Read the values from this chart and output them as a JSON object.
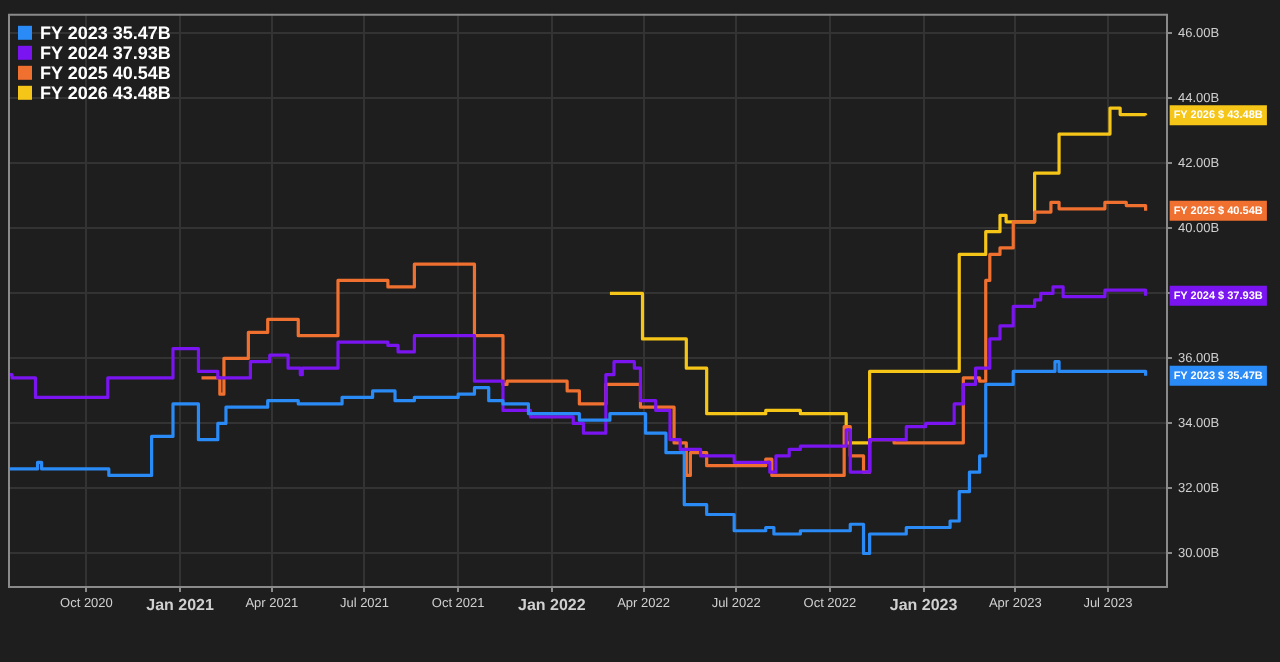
{
  "chart_data": {
    "type": "step",
    "legend": "top left",
    "grid": true,
    "xlim": [
      "2020-07-16",
      "2023-08-27"
    ],
    "xticks": [
      {
        "value": "2020-10-01",
        "label": "Oct 2020"
      },
      {
        "value": "2021-01-01",
        "label": "Jan 2021"
      },
      {
        "value": "2021-04-01",
        "label": "Apr 2021"
      },
      {
        "value": "2021-07-01",
        "label": "Jul 2021"
      },
      {
        "value": "2021-10-01",
        "label": "Oct 2021"
      },
      {
        "value": "2022-01-01",
        "label": "Jan 2022"
      },
      {
        "value": "2022-04-01",
        "label": "Apr 2022"
      },
      {
        "value": "2022-07-01",
        "label": "Jul 2022"
      },
      {
        "value": "2022-10-01",
        "label": "Oct 2022"
      },
      {
        "value": "2023-01-01",
        "label": "Jan 2023"
      },
      {
        "value": "2023-04-01",
        "label": "Apr 2023"
      },
      {
        "value": "2023-07-01",
        "label": "Jul 2023"
      }
    ],
    "ylim": [
      29.0,
      46.6
    ],
    "yticks": [
      {
        "value": 30,
        "label": "30.00B"
      },
      {
        "value": 32,
        "label": "32.00B"
      },
      {
        "value": 34,
        "label": "34.00B"
      },
      {
        "value": 36,
        "label": "36.00B"
      },
      {
        "value": 38,
        "label": null
      },
      {
        "value": 40,
        "label": "40.00B"
      },
      {
        "value": 42,
        "label": "42.00B"
      },
      {
        "value": 44,
        "label": "44.00B"
      },
      {
        "value": 46,
        "label": "46.00B"
      }
    ],
    "series": [
      {
        "name": "FY 2023 35.47B",
        "color": "#2a8af6",
        "x": [
          "2020-07-16",
          "2020-08-14",
          "2020-08-18",
          "2020-10-23",
          "2020-12-04",
          "2020-12-25",
          "2021-01-19",
          "2021-02-07",
          "2021-02-15",
          "2021-03-28",
          "2021-04-27",
          "2021-06-09",
          "2021-07-09",
          "2021-07-31",
          "2021-08-19",
          "2021-10-01",
          "2021-10-17",
          "2021-10-31",
          "2021-11-14",
          "2021-12-09",
          "2022-01-28",
          "2022-02-27",
          "2022-04-03",
          "2022-04-23",
          "2022-05-11",
          "2022-06-02",
          "2022-06-29",
          "2022-07-30",
          "2022-08-07",
          "2022-09-02",
          "2022-10-21",
          "2022-11-03",
          "2022-11-09",
          "2022-12-15",
          "2023-01-27",
          "2023-02-05",
          "2023-02-15",
          "2023-02-25",
          "2023-03-03",
          "2023-03-30",
          "2023-05-10",
          "2023-05-14",
          "2023-08-07"
        ],
        "values": [
          32.6,
          32.8,
          32.6,
          32.4,
          33.6,
          34.6,
          33.5,
          34.0,
          34.5,
          34.7,
          34.6,
          34.8,
          35.0,
          34.7,
          34.8,
          34.9,
          35.1,
          34.7,
          34.6,
          34.3,
          34.1,
          34.3,
          33.7,
          33.1,
          31.5,
          31.2,
          30.7,
          30.8,
          30.6,
          30.7,
          30.9,
          30.0,
          30.6,
          30.8,
          31.0,
          31.9,
          32.5,
          33.0,
          35.2,
          35.6,
          35.9,
          35.6,
          35.47
        ]
      },
      {
        "name": "FY 2024 37.93B",
        "color": "#7a14f0",
        "x": [
          "2020-07-16",
          "2020-07-20",
          "2020-08-12",
          "2020-10-22",
          "2020-12-25",
          "2021-01-19",
          "2021-02-07",
          "2021-03-11",
          "2021-03-30",
          "2021-04-17",
          "2021-04-29",
          "2021-05-01",
          "2021-06-05",
          "2021-07-24",
          "2021-08-03",
          "2021-08-19",
          "2021-10-17",
          "2021-11-14",
          "2021-12-11",
          "2022-01-22",
          "2022-02-01",
          "2022-02-23",
          "2022-03-03",
          "2022-03-23",
          "2022-03-29",
          "2022-04-13",
          "2022-04-27",
          "2022-05-07",
          "2022-05-27",
          "2022-06-29",
          "2022-08-03",
          "2022-08-09",
          "2022-08-22",
          "2022-09-02",
          "2022-10-17",
          "2022-10-21",
          "2022-11-09",
          "2022-12-15",
          "2023-01-03",
          "2023-01-31",
          "2023-02-09",
          "2023-02-21",
          "2023-03-07",
          "2023-03-17",
          "2023-03-30",
          "2023-04-20",
          "2023-04-26",
          "2023-05-08",
          "2023-05-18",
          "2023-06-28",
          "2023-08-07"
        ],
        "values": [
          35.5,
          35.4,
          34.8,
          35.4,
          36.3,
          35.6,
          35.4,
          35.9,
          36.1,
          35.7,
          35.5,
          35.7,
          36.5,
          36.4,
          36.2,
          36.7,
          35.3,
          34.4,
          34.2,
          34.0,
          33.7,
          35.5,
          35.9,
          35.7,
          34.7,
          34.4,
          33.5,
          33.2,
          33.0,
          32.8,
          32.5,
          33.0,
          33.2,
          33.3,
          33.8,
          32.5,
          33.5,
          33.9,
          34.0,
          34.6,
          35.2,
          35.7,
          36.6,
          37.0,
          37.6,
          37.8,
          38.0,
          38.2,
          37.9,
          38.1,
          37.93
        ]
      },
      {
        "name": "FY 2025 40.54B",
        "color": "#f07030",
        "x": [
          "2021-01-22",
          "2021-02-09",
          "2021-02-13",
          "2021-03-09",
          "2021-03-28",
          "2021-04-27",
          "2021-06-05",
          "2021-07-24",
          "2021-08-19",
          "2021-10-17",
          "2021-11-14",
          "2021-11-18",
          "2022-01-16",
          "2022-01-28",
          "2022-02-23",
          "2022-03-29",
          "2022-05-01",
          "2022-05-13",
          "2022-05-17",
          "2022-06-02",
          "2022-07-30",
          "2022-08-05",
          "2022-10-15",
          "2022-10-21",
          "2022-11-03",
          "2022-11-09",
          "2022-12-03",
          "2023-02-09",
          "2023-02-25",
          "2023-03-03",
          "2023-03-07",
          "2023-03-17",
          "2023-03-30",
          "2023-04-20",
          "2023-05-06",
          "2023-05-14",
          "2023-06-28",
          "2023-07-19",
          "2023-08-07"
        ],
        "values": [
          35.4,
          34.9,
          36.0,
          36.8,
          37.2,
          36.7,
          38.4,
          38.2,
          38.9,
          36.7,
          35.2,
          35.3,
          35.0,
          34.6,
          35.2,
          34.5,
          33.4,
          32.4,
          33.1,
          32.7,
          32.9,
          32.4,
          33.9,
          33.0,
          32.5,
          33.5,
          33.4,
          35.4,
          35.3,
          38.4,
          39.2,
          39.4,
          40.2,
          40.5,
          40.8,
          40.6,
          40.8,
          40.7,
          40.54
        ]
      },
      {
        "name": "FY 2026 43.48B",
        "color": "#f5c518",
        "x": [
          "2022-02-27",
          "2022-03-31",
          "2022-05-13",
          "2022-06-02",
          "2022-07-30",
          "2022-09-02",
          "2022-10-17",
          "2022-11-09",
          "2023-02-05",
          "2023-03-03",
          "2023-03-17",
          "2023-03-23",
          "2023-04-20",
          "2023-05-14",
          "2023-07-03",
          "2023-07-13",
          "2023-08-07"
        ],
        "values": [
          38.0,
          36.6,
          35.7,
          34.3,
          34.4,
          34.3,
          33.4,
          35.6,
          39.2,
          39.9,
          40.4,
          40.2,
          41.7,
          42.9,
          43.7,
          43.5,
          43.48
        ]
      }
    ],
    "annotations": [
      {
        "text": "FY 2026 $ 43.48B",
        "x": "2023-08-07",
        "y": 43.48
      },
      {
        "text": "FY 2025 $ 40.54B",
        "x": "2023-08-07",
        "y": 40.54
      },
      {
        "text": "FY 2024 $ 37.93B",
        "x": "2023-08-07",
        "y": 37.93
      },
      {
        "text": "FY 2023 $ 35.47B",
        "x": "2023-08-07",
        "y": 35.47
      }
    ]
  }
}
